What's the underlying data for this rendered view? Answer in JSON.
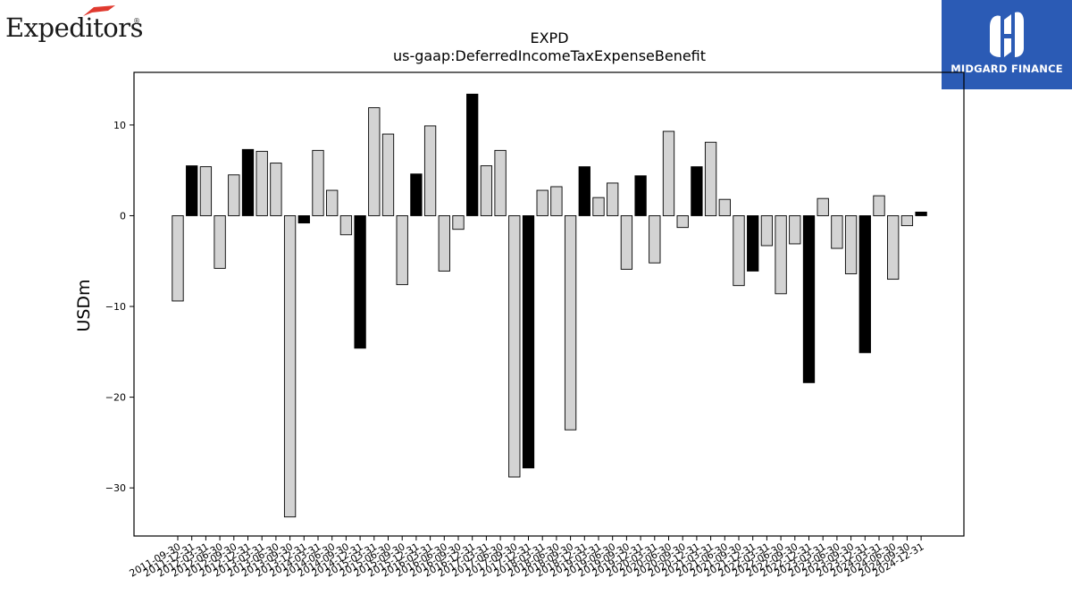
{
  "logos": {
    "left": {
      "text": "Expeditors",
      "reg": "®",
      "icon": "swoosh-icon",
      "accent": "#e03a2f"
    },
    "right": {
      "text": "MIDGARD FINANCE",
      "icon": "midgard-mark-icon",
      "background": "#2b5bb5"
    }
  },
  "chart_data": {
    "type": "bar",
    "title": "EXPD",
    "subtitle": "us-gaap:DeferredIncomeTaxExpenseBenefit",
    "xlabel": "",
    "ylabel": "USDm",
    "ylim": [
      -35.3,
      15.8
    ],
    "yticks": [
      10,
      0,
      -10,
      -20,
      -30
    ],
    "grid": false,
    "legend": "none",
    "colors": {
      "q4": "#000000",
      "other": "#d3d3d3",
      "edge": "#000000"
    },
    "categories": [
      "2011-09-30",
      "2011-12-31",
      "2012-03-31",
      "2012-06-30",
      "2012-09-30",
      "2012-12-31",
      "2013-03-31",
      "2013-06-30",
      "2013-09-30",
      "2013-12-31",
      "2014-03-31",
      "2014-06-30",
      "2014-09-30",
      "2014-12-31",
      "2015-03-31",
      "2015-06-30",
      "2015-09-30",
      "2015-12-31",
      "2016-03-31",
      "2016-06-30",
      "2016-09-30",
      "2016-12-31",
      "2017-03-31",
      "2017-06-30",
      "2017-09-30",
      "2017-12-31",
      "2018-03-31",
      "2018-06-30",
      "2018-09-30",
      "2018-12-31",
      "2019-03-31",
      "2019-06-30",
      "2019-09-30",
      "2019-12-31",
      "2020-03-31",
      "2020-06-30",
      "2020-09-30",
      "2020-12-31",
      "2021-03-31",
      "2021-06-30",
      "2021-09-30",
      "2021-12-31",
      "2022-03-31",
      "2022-06-30",
      "2022-09-30",
      "2022-12-31",
      "2023-03-31",
      "2023-06-30",
      "2023-09-30",
      "2023-12-31",
      "2024-03-31",
      "2024-06-30",
      "2024-09-30",
      "2024-12-31"
    ],
    "values": [
      -9.4,
      5.5,
      5.4,
      -5.8,
      4.5,
      7.3,
      7.1,
      5.8,
      -33.2,
      -0.8,
      7.2,
      2.8,
      -2.1,
      -14.6,
      11.9,
      9.0,
      -7.6,
      4.6,
      9.9,
      -6.1,
      -1.5,
      13.4,
      5.5,
      7.2,
      -28.8,
      -27.8,
      2.8,
      3.2,
      -23.6,
      5.4,
      2.0,
      3.6,
      -5.9,
      4.4,
      -5.2,
      9.3,
      -1.3,
      5.4,
      8.1,
      1.8,
      -7.7,
      -6.1,
      -3.3,
      -8.6,
      -3.1,
      -18.4,
      1.9,
      -3.6,
      -6.4,
      -15.1,
      2.2,
      -7.0,
      -1.1,
      0.4
    ]
  }
}
